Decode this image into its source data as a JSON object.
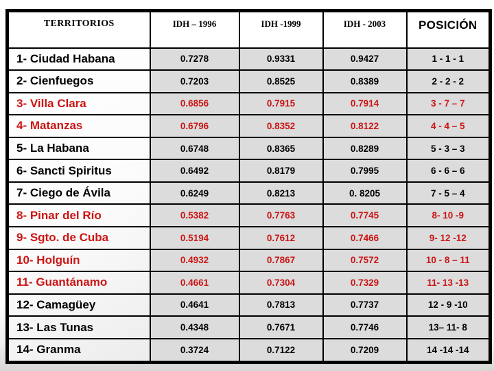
{
  "colors": {
    "red_text": "#cc1414",
    "black_text": "#000000",
    "grid_border": "#000000",
    "header_fill": "#ffffff",
    "cell_fill_gray": "#dcdcdc",
    "slide_bottom_gray": "#d6d6d6"
  },
  "chart_data": {
    "type": "table",
    "title": "",
    "legend": "row text color encodes highlight: red vs black",
    "columns": [
      {
        "key": "territory",
        "label": "TERRITORIOS"
      },
      {
        "key": "idh_1996",
        "label": "IDH – 1996"
      },
      {
        "key": "idh_1999",
        "label": "IDH -1999"
      },
      {
        "key": "idh_2003",
        "label": "IDH - 2003"
      },
      {
        "key": "posicion",
        "label": "POSICIÓN"
      }
    ],
    "rows": [
      {
        "territory": "1- Ciudad Habana",
        "idh_1996": "0.7278",
        "idh_1999": "0.9331",
        "idh_2003": "0.9427",
        "posicion": "1 - 1 - 1",
        "text_color": "black"
      },
      {
        "territory": "2- Cienfuegos",
        "idh_1996": "0.7203",
        "idh_1999": "0.8525",
        "idh_2003": "0.8389",
        "posicion": "2 - 2 - 2",
        "text_color": "black"
      },
      {
        "territory": "3- Villa Clara",
        "idh_1996": "0.6856",
        "idh_1999": "0.7915",
        "idh_2003": "0.7914",
        "posicion": "3 - 7 – 7",
        "text_color": "red"
      },
      {
        "territory": "4- Matanzas",
        "idh_1996": "0.6796",
        "idh_1999": "0.8352",
        "idh_2003": "0.8122",
        "posicion": "4 - 4 – 5",
        "text_color": "red"
      },
      {
        "territory": "5- La Habana",
        "idh_1996": "0.6748",
        "idh_1999": "0.8365",
        "idh_2003": "0.8289",
        "posicion": "5 - 3 – 3",
        "text_color": "black"
      },
      {
        "territory": "6- Sancti Spiritus",
        "idh_1996": "0.6492",
        "idh_1999": "0.8179",
        "idh_2003": "0.7995",
        "posicion": "6 - 6 – 6",
        "text_color": "black"
      },
      {
        "territory": "7- Ciego de Ávila",
        "idh_1996": "0.6249",
        "idh_1999": "0.8213",
        "idh_2003": "0. 8205",
        "posicion": "7 - 5 – 4",
        "text_color": "black"
      },
      {
        "territory": "8- Pinar del Río",
        "idh_1996": "0.5382",
        "idh_1999": "0.7763",
        "idh_2003": "0.7745",
        "posicion": "8- 10 -9",
        "text_color": "red"
      },
      {
        "territory": "9- Sgto. de Cuba",
        "idh_1996": "0.5194",
        "idh_1999": "0.7612",
        "idh_2003": "0.7466",
        "posicion": "9- 12 -12",
        "text_color": "red"
      },
      {
        "territory": "10- Holguín",
        "idh_1996": "0.4932",
        "idh_1999": "0.7867",
        "idh_2003": "0.7572",
        "posicion": "10 - 8 – 11",
        "text_color": "red"
      },
      {
        "territory": "11- Guantánamo",
        "idh_1996": "0.4661",
        "idh_1999": "0.7304",
        "idh_2003": "0.7329",
        "posicion": "11- 13 -13",
        "text_color": "red"
      },
      {
        "territory": "12- Camagüey",
        "idh_1996": "0.4641",
        "idh_1999": "0.7813",
        "idh_2003": "0.7737",
        "posicion": "12 - 9 -10",
        "text_color": "black"
      },
      {
        "territory": "13- Las Tunas",
        "idh_1996": "0.4348",
        "idh_1999": "0.7671",
        "idh_2003": "0.7746",
        "posicion": "13– 11- 8",
        "text_color": "black"
      },
      {
        "territory": "14- Granma",
        "idh_1996": "0.3724",
        "idh_1999": "0.7122",
        "idh_2003": "0.7209",
        "posicion": "14 -14 -14",
        "text_color": "black"
      }
    ]
  }
}
